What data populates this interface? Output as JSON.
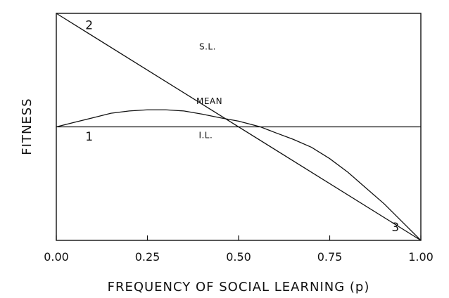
{
  "chart_data": {
    "type": "line",
    "title": "",
    "xlabel": "FREQUENCY OF SOCIAL LEARNING (p)",
    "ylabel": "FITNESS",
    "xlim": [
      0,
      1
    ],
    "ylim": [
      0,
      1
    ],
    "grid": false,
    "x_ticks": [
      "0.00",
      "0.25",
      "0.50",
      "0.75",
      "1.00"
    ],
    "x_tick_values": [
      0,
      0.25,
      0.5,
      0.75,
      1.0
    ],
    "series": [
      {
        "name": "S.L.",
        "x": [
          0,
          1
        ],
        "y": [
          1.0,
          0.0
        ]
      },
      {
        "name": "I.L.",
        "x": [
          0,
          1
        ],
        "y": [
          0.5,
          0.5
        ]
      },
      {
        "name": "MEAN",
        "x": [
          0,
          0.05,
          0.1,
          0.15,
          0.2,
          0.25,
          0.3,
          0.35,
          0.4,
          0.45,
          0.5,
          0.56,
          0.6,
          0.65,
          0.7,
          0.75,
          0.8,
          0.85,
          0.9,
          0.95,
          1.0
        ],
        "y": [
          0.5,
          0.52,
          0.54,
          0.56,
          0.57,
          0.575,
          0.575,
          0.57,
          0.556,
          0.54,
          0.525,
          0.5,
          0.475,
          0.445,
          0.41,
          0.36,
          0.3,
          0.23,
          0.16,
          0.08,
          0.0
        ]
      }
    ],
    "annotations": [
      {
        "text": "2",
        "x": 0.09,
        "y": 0.93
      },
      {
        "text": "1",
        "x": 0.09,
        "y": 0.44
      },
      {
        "text": "3",
        "x": 0.93,
        "y": 0.04
      }
    ],
    "series_label_positions": [
      {
        "text": "S.L.",
        "x": 0.415,
        "y": 0.84
      },
      {
        "text": "MEAN",
        "x": 0.42,
        "y": 0.6
      },
      {
        "text": "I.L.",
        "x": 0.41,
        "y": 0.45
      }
    ]
  }
}
